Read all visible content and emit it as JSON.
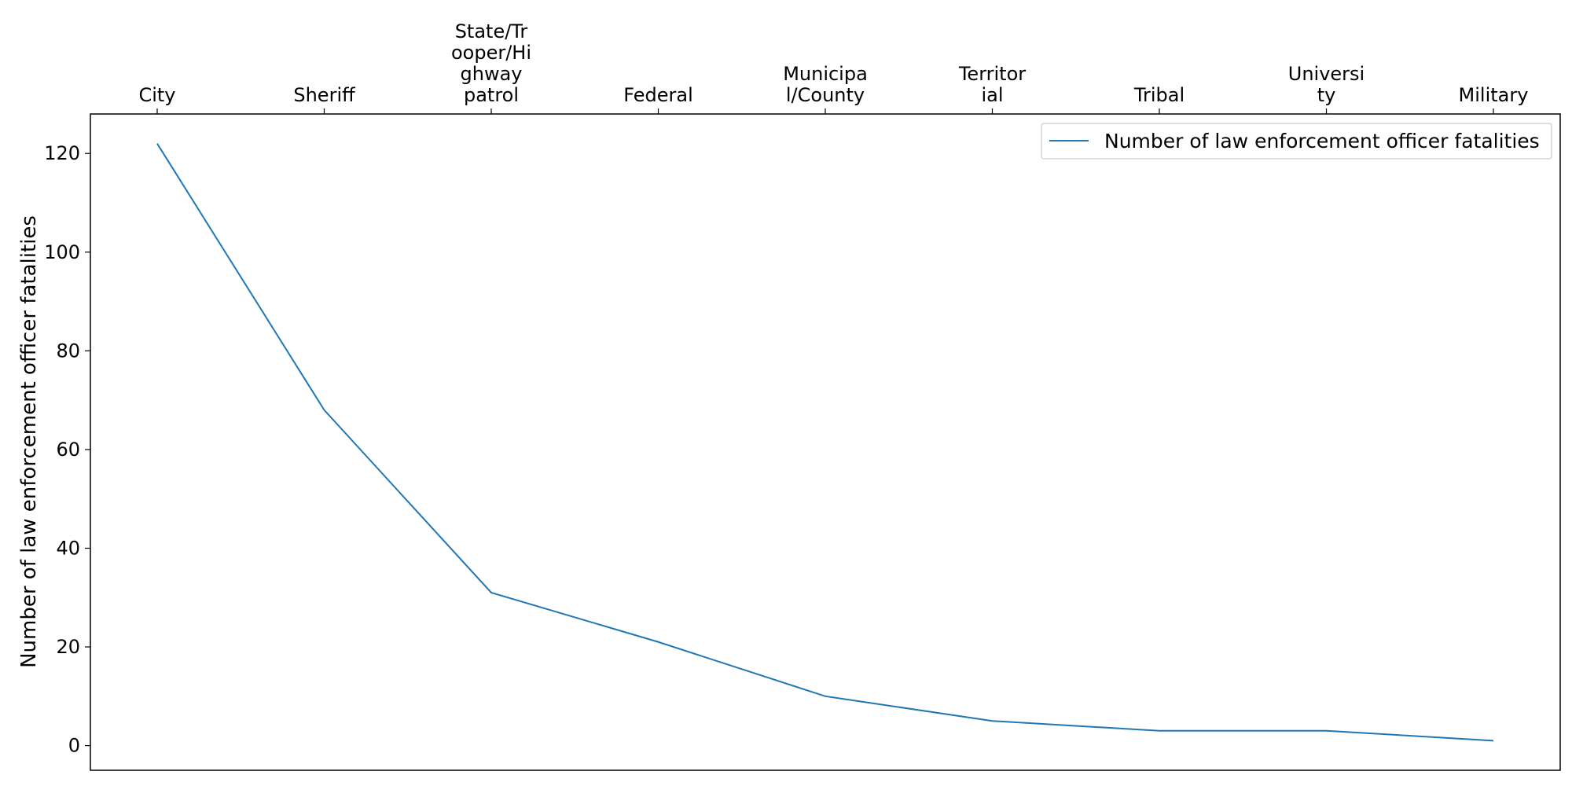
{
  "chart_data": {
    "type": "line",
    "categories": [
      "City",
      "Sheriff",
      "State/Trooper/Highway patrol",
      "Federal",
      "Municipal/County",
      "Territorial",
      "Tribal",
      "University",
      "Military"
    ],
    "category_labels_wrapped": [
      [
        "City"
      ],
      [
        "Sheriff"
      ],
      [
        "State/Tr",
        "ooper/Hi",
        "ghway",
        "patrol"
      ],
      [
        "Federal"
      ],
      [
        "Municipa",
        "l/County"
      ],
      [
        "Territor",
        "ial"
      ],
      [
        "Tribal"
      ],
      [
        "Universi",
        "ty"
      ],
      [
        "Military"
      ]
    ],
    "series": [
      {
        "name": "Number of law enforcement officer fatalities",
        "values": [
          122,
          68,
          31,
          21,
          10,
          5,
          3,
          3,
          1
        ],
        "color": "#1f77b4"
      }
    ],
    "xlabel": "",
    "ylabel": "Number of law enforcement officer fatalities",
    "ylim": [
      -5,
      128
    ],
    "yticks": [
      0,
      20,
      40,
      60,
      80,
      100,
      120
    ],
    "x_axis_position": "top",
    "grid": false,
    "legend_position": "top-right"
  }
}
